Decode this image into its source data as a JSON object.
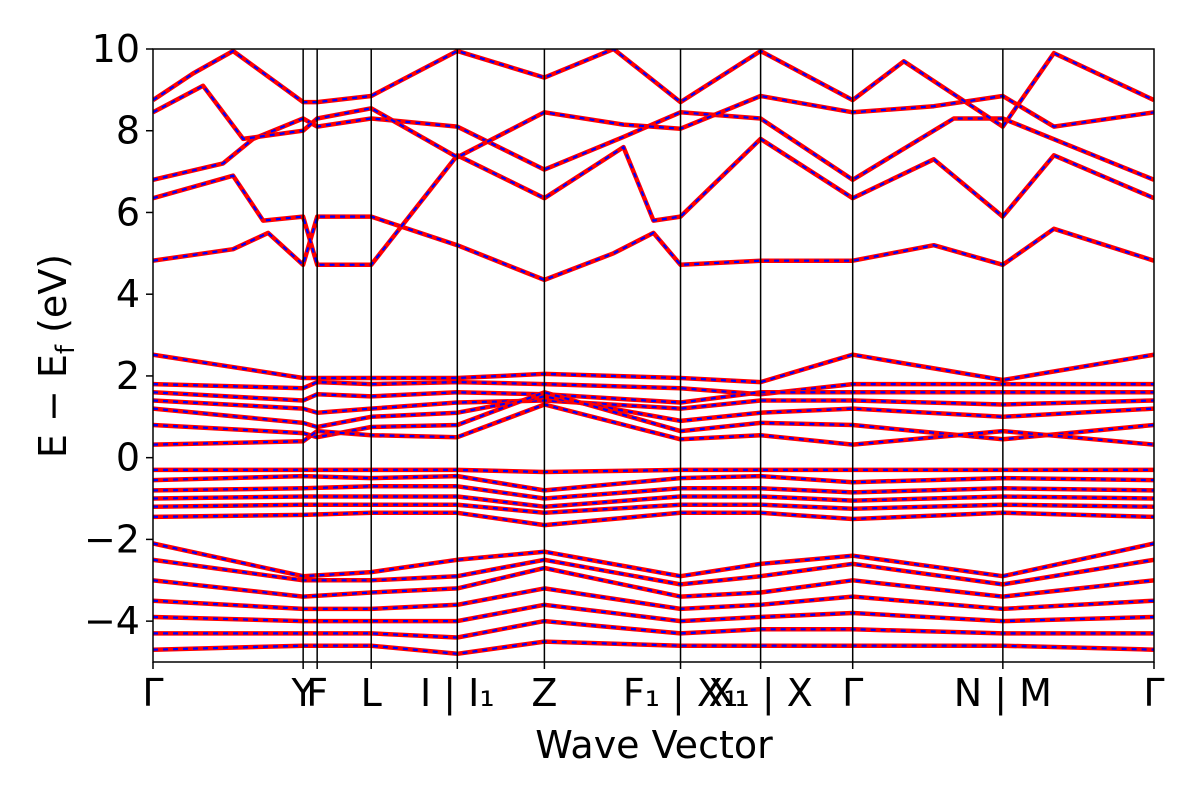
{
  "chart_data": {
    "type": "line",
    "title": "",
    "xlabel": "Wave Vector",
    "ylabel": "E − E_f (eV)",
    "ylabel_parts": {
      "main": "E − E",
      "sub": "f",
      "unit": " (eV)"
    },
    "ylim": [
      -5,
      10
    ],
    "y_ticks": [
      -4,
      -2,
      0,
      2,
      4,
      6,
      8,
      10
    ],
    "y_tick_labels": [
      "−4",
      "−2",
      "0",
      "2",
      "4",
      "6",
      "8",
      "10"
    ],
    "k_path": [
      {
        "label": "Γ",
        "x": 0.0
      },
      {
        "label": "Y",
        "x": 0.15
      },
      {
        "label": "F",
        "x": 0.164
      },
      {
        "label": "L",
        "x": 0.218
      },
      {
        "label": "I | I₁",
        "x": 0.304
      },
      {
        "label": "Z",
        "x": 0.391
      },
      {
        "label": "F₁ | X₁",
        "x": 0.527
      },
      {
        "label": "X₁ | X",
        "x": 0.607
      },
      {
        "label": "Γ",
        "x": 0.699
      },
      {
        "label": "N | M",
        "x": 0.849
      },
      {
        "label": "Γ",
        "x": 1.0
      }
    ],
    "x_tick_labels": [
      "Γ",
      "Y",
      "F",
      "L",
      "I | I₁",
      "Z",
      "F₁ | X₁",
      "X₁ | X",
      "Γ",
      "N | M",
      "Γ"
    ],
    "high_symmetry_lines_x": [
      0.15,
      0.164,
      0.218,
      0.304,
      0.391,
      0.527,
      0.607,
      0.699,
      0.849
    ],
    "series_styles": [
      {
        "color": "#ff0000",
        "style": "solid"
      },
      {
        "color": "#0000ff",
        "style": "dashed"
      }
    ],
    "bands": [
      [
        [
          0,
          4.82
        ],
        [
          0.08,
          5.1
        ],
        [
          0.115,
          5.5
        ],
        [
          0.15,
          4.72
        ],
        [
          0.164,
          5.9
        ],
        [
          0.218,
          5.9
        ],
        [
          0.304,
          5.2
        ],
        [
          0.391,
          4.35
        ],
        [
          0.46,
          5.0
        ],
        [
          0.5,
          5.5
        ],
        [
          0.527,
          4.72
        ],
        [
          0.607,
          4.82
        ],
        [
          0.699,
          4.82
        ],
        [
          0.78,
          5.2
        ],
        [
          0.849,
          4.72
        ],
        [
          0.9,
          5.6
        ],
        [
          1.0,
          4.82
        ]
      ],
      [
        [
          0,
          6.35
        ],
        [
          0.08,
          6.9
        ],
        [
          0.11,
          5.8
        ],
        [
          0.15,
          5.9
        ],
        [
          0.164,
          4.72
        ],
        [
          0.218,
          4.72
        ],
        [
          0.304,
          7.4
        ],
        [
          0.391,
          6.35
        ],
        [
          0.47,
          7.6
        ],
        [
          0.5,
          5.8
        ],
        [
          0.527,
          5.9
        ],
        [
          0.607,
          7.8
        ],
        [
          0.699,
          6.35
        ],
        [
          0.78,
          7.3
        ],
        [
          0.849,
          5.9
        ],
        [
          0.9,
          7.4
        ],
        [
          1.0,
          6.35
        ]
      ],
      [
        [
          0,
          6.8
        ],
        [
          0.07,
          7.2
        ],
        [
          0.1,
          7.8
        ],
        [
          0.15,
          8.3
        ],
        [
          0.164,
          8.1
        ],
        [
          0.218,
          8.3
        ],
        [
          0.304,
          8.1
        ],
        [
          0.391,
          7.05
        ],
        [
          0.47,
          7.85
        ],
        [
          0.527,
          8.45
        ],
        [
          0.607,
          8.3
        ],
        [
          0.699,
          6.8
        ],
        [
          0.8,
          8.3
        ],
        [
          0.849,
          8.3
        ],
        [
          1.0,
          6.8
        ]
      ],
      [
        [
          0,
          8.45
        ],
        [
          0.05,
          9.1
        ],
        [
          0.09,
          7.8
        ],
        [
          0.15,
          8.0
        ],
        [
          0.164,
          8.3
        ],
        [
          0.218,
          8.55
        ],
        [
          0.304,
          7.35
        ],
        [
          0.391,
          8.45
        ],
        [
          0.47,
          8.15
        ],
        [
          0.527,
          8.05
        ],
        [
          0.607,
          8.85
        ],
        [
          0.699,
          8.45
        ],
        [
          0.78,
          8.6
        ],
        [
          0.849,
          8.85
        ],
        [
          0.9,
          8.1
        ],
        [
          1.0,
          8.45
        ]
      ],
      [
        [
          0,
          8.75
        ],
        [
          0.04,
          9.4
        ],
        [
          0.08,
          9.95
        ],
        [
          0.15,
          8.7
        ],
        [
          0.164,
          8.7
        ],
        [
          0.218,
          8.85
        ],
        [
          0.304,
          9.95
        ],
        [
          0.391,
          9.3
        ],
        [
          0.46,
          10.0
        ],
        [
          0.527,
          8.7
        ],
        [
          0.607,
          9.95
        ],
        [
          0.699,
          8.75
        ],
        [
          0.75,
          9.7
        ],
        [
          0.849,
          8.1
        ],
        [
          0.9,
          9.9
        ],
        [
          1.0,
          8.75
        ]
      ],
      [
        [
          0,
          2.52
        ],
        [
          0.15,
          1.95
        ],
        [
          0.164,
          1.95
        ],
        [
          0.218,
          1.95
        ],
        [
          0.304,
          1.95
        ],
        [
          0.391,
          2.05
        ],
        [
          0.527,
          1.95
        ],
        [
          0.607,
          1.85
        ],
        [
          0.699,
          2.52
        ],
        [
          0.849,
          1.9
        ],
        [
          1.0,
          2.52
        ]
      ],
      [
        [
          0,
          1.8
        ],
        [
          0.15,
          1.7
        ],
        [
          0.164,
          1.85
        ],
        [
          0.218,
          1.8
        ],
        [
          0.304,
          1.85
        ],
        [
          0.391,
          1.8
        ],
        [
          0.527,
          1.7
        ],
        [
          0.607,
          1.55
        ],
        [
          0.699,
          1.8
        ],
        [
          0.849,
          1.8
        ],
        [
          1.0,
          1.8
        ]
      ],
      [
        [
          0,
          1.6
        ],
        [
          0.15,
          1.4
        ],
        [
          0.164,
          1.55
        ],
        [
          0.218,
          1.5
        ],
        [
          0.304,
          1.6
        ],
        [
          0.391,
          1.55
        ],
        [
          0.527,
          1.35
        ],
        [
          0.607,
          1.6
        ],
        [
          0.699,
          1.6
        ],
        [
          0.849,
          1.6
        ],
        [
          1.0,
          1.6
        ]
      ],
      [
        [
          0,
          1.4
        ],
        [
          0.15,
          1.2
        ],
        [
          0.164,
          1.1
        ],
        [
          0.218,
          1.2
        ],
        [
          0.304,
          1.35
        ],
        [
          0.391,
          1.4
        ],
        [
          0.527,
          1.2
        ],
        [
          0.607,
          1.4
        ],
        [
          0.699,
          1.4
        ],
        [
          0.849,
          1.3
        ],
        [
          1.0,
          1.4
        ]
      ],
      [
        [
          0,
          1.2
        ],
        [
          0.15,
          0.85
        ],
        [
          0.164,
          0.75
        ],
        [
          0.218,
          1.0
        ],
        [
          0.304,
          1.1
        ],
        [
          0.391,
          1.5
        ],
        [
          0.527,
          0.9
        ],
        [
          0.607,
          1.1
        ],
        [
          0.699,
          1.2
        ],
        [
          0.849,
          1.0
        ],
        [
          1.0,
          1.2
        ]
      ],
      [
        [
          0,
          0.8
        ],
        [
          0.15,
          0.6
        ],
        [
          0.164,
          0.5
        ],
        [
          0.218,
          0.75
        ],
        [
          0.304,
          0.8
        ],
        [
          0.391,
          1.6
        ],
        [
          0.527,
          0.65
        ],
        [
          0.607,
          0.85
        ],
        [
          0.699,
          0.8
        ],
        [
          0.849,
          0.45
        ],
        [
          1.0,
          0.8
        ]
      ],
      [
        [
          0,
          0.32
        ],
        [
          0.15,
          0.4
        ],
        [
          0.164,
          0.65
        ],
        [
          0.218,
          0.55
        ],
        [
          0.304,
          0.5
        ],
        [
          0.391,
          1.3
        ],
        [
          0.527,
          0.45
        ],
        [
          0.607,
          0.55
        ],
        [
          0.699,
          0.32
        ],
        [
          0.849,
          0.65
        ],
        [
          1.0,
          0.32
        ]
      ],
      [
        [
          0,
          -0.3
        ],
        [
          0.15,
          -0.3
        ],
        [
          0.218,
          -0.3
        ],
        [
          0.304,
          -0.3
        ],
        [
          0.391,
          -0.35
        ],
        [
          0.527,
          -0.3
        ],
        [
          0.607,
          -0.3
        ],
        [
          0.699,
          -0.3
        ],
        [
          0.849,
          -0.3
        ],
        [
          1.0,
          -0.3
        ]
      ],
      [
        [
          0,
          -0.55
        ],
        [
          0.15,
          -0.45
        ],
        [
          0.218,
          -0.5
        ],
        [
          0.304,
          -0.45
        ],
        [
          0.391,
          -0.8
        ],
        [
          0.527,
          -0.5
        ],
        [
          0.607,
          -0.45
        ],
        [
          0.699,
          -0.6
        ],
        [
          0.849,
          -0.5
        ],
        [
          1.0,
          -0.55
        ]
      ],
      [
        [
          0,
          -0.8
        ],
        [
          0.15,
          -0.75
        ],
        [
          0.218,
          -0.7
        ],
        [
          0.304,
          -0.7
        ],
        [
          0.391,
          -1.0
        ],
        [
          0.527,
          -0.75
        ],
        [
          0.607,
          -0.75
        ],
        [
          0.699,
          -0.85
        ],
        [
          0.849,
          -0.75
        ],
        [
          1.0,
          -0.8
        ]
      ],
      [
        [
          0,
          -1.0
        ],
        [
          0.15,
          -0.95
        ],
        [
          0.218,
          -0.95
        ],
        [
          0.304,
          -0.95
        ],
        [
          0.391,
          -1.2
        ],
        [
          0.527,
          -0.95
        ],
        [
          0.607,
          -0.95
        ],
        [
          0.699,
          -1.05
        ],
        [
          0.849,
          -0.95
        ],
        [
          1.0,
          -1.0
        ]
      ],
      [
        [
          0,
          -1.2
        ],
        [
          0.15,
          -1.15
        ],
        [
          0.218,
          -1.15
        ],
        [
          0.304,
          -1.15
        ],
        [
          0.391,
          -1.35
        ],
        [
          0.527,
          -1.15
        ],
        [
          0.607,
          -1.15
        ],
        [
          0.699,
          -1.25
        ],
        [
          0.849,
          -1.15
        ],
        [
          1.0,
          -1.2
        ]
      ],
      [
        [
          0,
          -1.45
        ],
        [
          0.15,
          -1.4
        ],
        [
          0.218,
          -1.35
        ],
        [
          0.304,
          -1.35
        ],
        [
          0.391,
          -1.65
        ],
        [
          0.527,
          -1.35
        ],
        [
          0.607,
          -1.35
        ],
        [
          0.699,
          -1.5
        ],
        [
          0.849,
          -1.35
        ],
        [
          1.0,
          -1.45
        ]
      ],
      [
        [
          0,
          -2.1
        ],
        [
          0.15,
          -2.9
        ],
        [
          0.218,
          -2.8
        ],
        [
          0.304,
          -2.5
        ],
        [
          0.391,
          -2.3
        ],
        [
          0.527,
          -2.9
        ],
        [
          0.607,
          -2.6
        ],
        [
          0.699,
          -2.4
        ],
        [
          0.849,
          -2.9
        ],
        [
          1.0,
          -2.1
        ]
      ],
      [
        [
          0,
          -2.5
        ],
        [
          0.15,
          -3.0
        ],
        [
          0.218,
          -3.0
        ],
        [
          0.304,
          -2.9
        ],
        [
          0.391,
          -2.5
        ],
        [
          0.527,
          -3.1
        ],
        [
          0.607,
          -2.9
        ],
        [
          0.699,
          -2.6
        ],
        [
          0.849,
          -3.1
        ],
        [
          1.0,
          -2.5
        ]
      ],
      [
        [
          0,
          -3.0
        ],
        [
          0.15,
          -3.4
        ],
        [
          0.218,
          -3.3
        ],
        [
          0.304,
          -3.2
        ],
        [
          0.391,
          -2.7
        ],
        [
          0.527,
          -3.4
        ],
        [
          0.607,
          -3.3
        ],
        [
          0.699,
          -3.0
        ],
        [
          0.849,
          -3.4
        ],
        [
          1.0,
          -3.0
        ]
      ],
      [
        [
          0,
          -3.5
        ],
        [
          0.15,
          -3.7
        ],
        [
          0.218,
          -3.7
        ],
        [
          0.304,
          -3.6
        ],
        [
          0.391,
          -3.2
        ],
        [
          0.527,
          -3.7
        ],
        [
          0.607,
          -3.6
        ],
        [
          0.699,
          -3.4
        ],
        [
          0.849,
          -3.7
        ],
        [
          1.0,
          -3.5
        ]
      ],
      [
        [
          0,
          -3.9
        ],
        [
          0.15,
          -4.0
        ],
        [
          0.218,
          -4.0
        ],
        [
          0.304,
          -4.0
        ],
        [
          0.391,
          -3.6
        ],
        [
          0.527,
          -4.0
        ],
        [
          0.607,
          -3.9
        ],
        [
          0.699,
          -3.8
        ],
        [
          0.849,
          -4.0
        ],
        [
          1.0,
          -3.9
        ]
      ],
      [
        [
          0,
          -4.3
        ],
        [
          0.15,
          -4.3
        ],
        [
          0.218,
          -4.3
        ],
        [
          0.304,
          -4.4
        ],
        [
          0.391,
          -4.0
        ],
        [
          0.527,
          -4.3
        ],
        [
          0.607,
          -4.2
        ],
        [
          0.699,
          -4.2
        ],
        [
          0.849,
          -4.3
        ],
        [
          1.0,
          -4.3
        ]
      ],
      [
        [
          0,
          -4.7
        ],
        [
          0.15,
          -4.6
        ],
        [
          0.218,
          -4.6
        ],
        [
          0.304,
          -4.8
        ],
        [
          0.391,
          -4.5
        ],
        [
          0.527,
          -4.6
        ],
        [
          0.607,
          -4.6
        ],
        [
          0.699,
          -4.6
        ],
        [
          0.849,
          -4.6
        ],
        [
          1.0,
          -4.7
        ]
      ]
    ]
  }
}
